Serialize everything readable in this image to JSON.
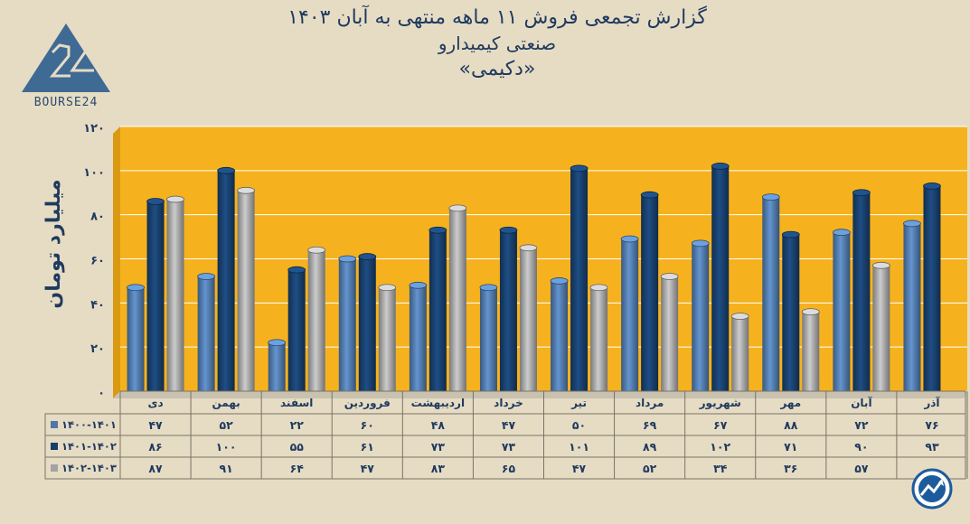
{
  "header": {
    "title_line1": "گزارش تجمعی فروش ۱۱ ماهه منتهی به آبان ۱۴۰۳",
    "title_line2": "صنعتی کیمیدارو",
    "title_line3": "«دکیمی»"
  },
  "logo": {
    "text": "BOURSE24",
    "glyph": "24"
  },
  "colors": {
    "background": "#e6dcc4",
    "plot_background": "#f6b21e",
    "series": [
      "#4f77a6",
      "#183e6a",
      "#a3a3a3"
    ]
  },
  "badge_icon": "trend-chart-icon",
  "chart_data": {
    "type": "bar",
    "ylabel": "میلیارد تومان",
    "ylim": [
      0,
      120
    ],
    "yticks": [
      0,
      20,
      40,
      60,
      80,
      100,
      120
    ],
    "ytick_labels": [
      "۰",
      "۲۰",
      "۴۰",
      "۶۰",
      "۸۰",
      "۱۰۰",
      "۱۲۰"
    ],
    "grid": true,
    "categories": [
      "دی",
      "بهمن",
      "اسفند",
      "فروردین",
      "اردیبهشت",
      "خرداد",
      "تیر",
      "مرداد",
      "شهریور",
      "مهر",
      "آبان",
      "آذر"
    ],
    "series": [
      {
        "name": "۱۴۰۰-۱۴۰۱",
        "values": [
          47,
          52,
          22,
          60,
          48,
          47,
          50,
          69,
          67,
          88,
          72,
          76
        ],
        "labels": [
          "۴۷",
          "۵۲",
          "۲۲",
          "۶۰",
          "۴۸",
          "۴۷",
          "۵۰",
          "۶۹",
          "۶۷",
          "۸۸",
          "۷۲",
          "۷۶"
        ]
      },
      {
        "name": "۱۴۰۱-۱۴۰۲",
        "values": [
          86,
          100,
          55,
          61,
          73,
          73,
          101,
          89,
          102,
          71,
          90,
          93
        ],
        "labels": [
          "۸۶",
          "۱۰۰",
          "۵۵",
          "۶۱",
          "۷۳",
          "۷۳",
          "۱۰۱",
          "۸۹",
          "۱۰۲",
          "۷۱",
          "۹۰",
          "۹۳"
        ]
      },
      {
        "name": "۱۴۰۲-۱۴۰۳",
        "values": [
          87,
          91,
          64,
          47,
          83,
          65,
          47,
          52,
          34,
          36,
          57,
          null
        ],
        "labels": [
          "۸۷",
          "۹۱",
          "۶۴",
          "۴۷",
          "۸۳",
          "۶۵",
          "۴۷",
          "۵۲",
          "۳۴",
          "۳۶",
          "۵۷",
          ""
        ]
      }
    ],
    "legend": "table-below"
  }
}
